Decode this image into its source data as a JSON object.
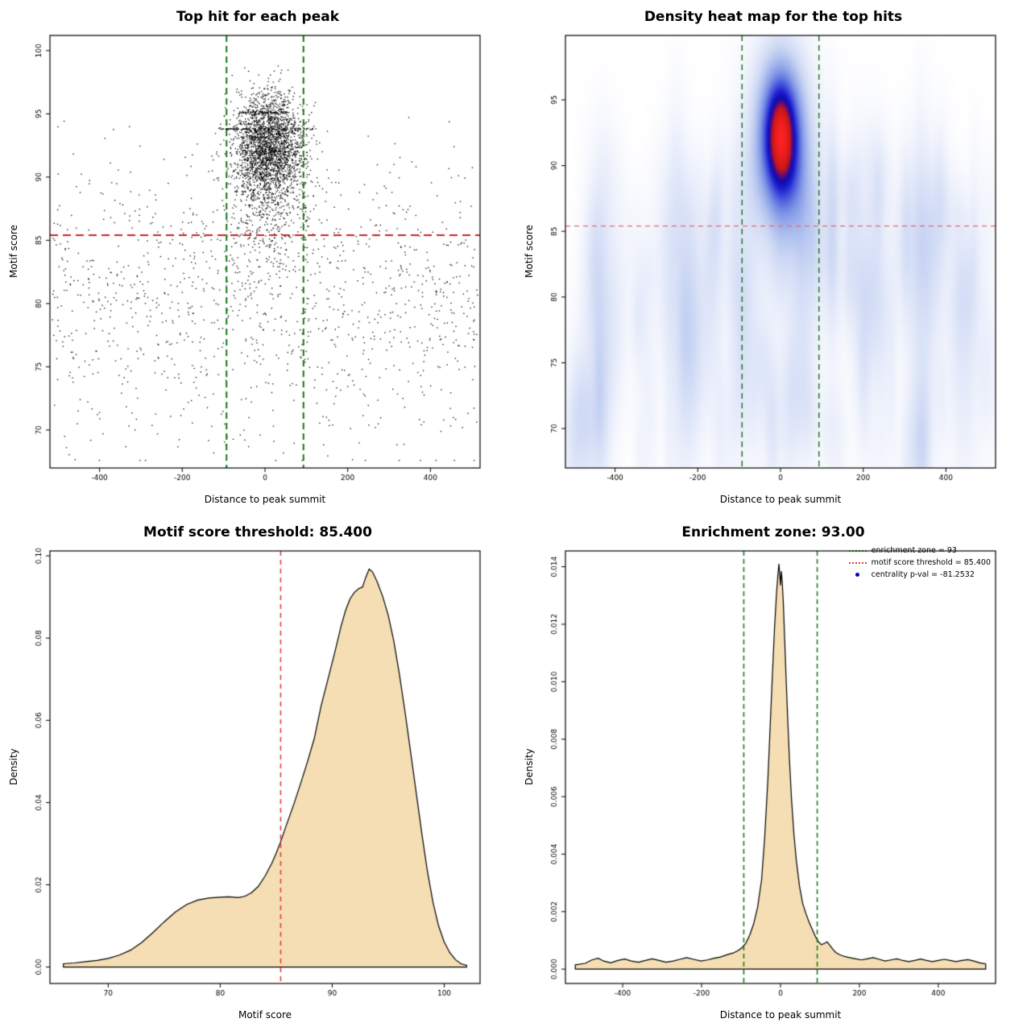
{
  "figure": {
    "background": "#ffffff"
  },
  "chart_data": [
    {
      "type": "scatter",
      "title": "Top hit for each peak",
      "xlabel": "Distance to peak summit",
      "ylabel": "Motif score",
      "xlim": [
        -520,
        520
      ],
      "ylim": [
        67,
        101.2
      ],
      "xticks": [
        -400,
        -200,
        0,
        200,
        400
      ],
      "xtick_labels": [
        "-400",
        "-200",
        "0",
        "200",
        "400"
      ],
      "yticks": [
        70,
        75,
        80,
        85,
        90,
        95,
        100
      ],
      "ytick_labels": [
        "70",
        "75",
        "80",
        "85",
        "90",
        "95",
        "100"
      ],
      "point_color": "#000000",
      "seed": 42,
      "clusters": [
        {
          "kind": "normal",
          "n": 2400,
          "x_mean": 8,
          "x_sd": 42,
          "y_mean": 92.4,
          "y_sd": 2.1,
          "x_clip": [
            -300,
            330
          ],
          "y_clip": [
            85.8,
            100.3
          ]
        },
        {
          "kind": "normal",
          "n": 420,
          "x_mean": 10,
          "x_sd": 60,
          "y_mean": 87.5,
          "y_sd": 2.6,
          "x_clip": [
            -330,
            360
          ],
          "y_clip": [
            80,
            92
          ]
        },
        {
          "kind": "background",
          "n": 1150,
          "x_range": [
            -515,
            515
          ],
          "y_mean": 80.3,
          "y_sd": 5.3,
          "y_clip": [
            67.6,
            96.5
          ]
        },
        {
          "kind": "streak",
          "n": 80,
          "y": 95.1,
          "x_range": [
            -62,
            58
          ],
          "y_jitter": 0.05
        },
        {
          "kind": "streak",
          "n": 110,
          "y": 93.8,
          "x_range": [
            -112,
            128
          ],
          "y_jitter": 0.05
        },
        {
          "kind": "normal",
          "n": 18,
          "x_mean": -200,
          "x_sd": 150,
          "y_mean": 69.5,
          "y_sd": 1.2,
          "x_clip": [
            -480,
            480
          ],
          "y_clip": [
            67.6,
            72
          ]
        }
      ],
      "vlines": [
        {
          "x": -93,
          "color": "#117711",
          "dash": [
            8,
            5
          ],
          "width": 2
        },
        {
          "x": 93,
          "color": "#117711",
          "dash": [
            8,
            5
          ],
          "width": 2
        }
      ],
      "hlines": [
        {
          "y": 85.4,
          "color": "#cc2222",
          "dash": [
            10,
            6
          ],
          "width": 2
        }
      ],
      "enrichment_zone": 93,
      "motif_score_threshold": 85.4
    },
    {
      "type": "heatmap2d",
      "title": "Density heat map for the top hits",
      "xlabel": "Distance to peak summit",
      "ylabel": "Motif score",
      "xlim": [
        -520,
        520
      ],
      "ylim": [
        67,
        99.9
      ],
      "xticks": [
        -400,
        -200,
        0,
        200,
        400
      ],
      "xtick_labels": [
        "-400",
        "-200",
        "0",
        "200",
        "400"
      ],
      "yticks": [
        70,
        75,
        80,
        85,
        90,
        95
      ],
      "ytick_labels": [
        "70",
        "75",
        "80",
        "85",
        "90",
        "95"
      ],
      "components": [
        {
          "amp": 1.0,
          "x0": 0,
          "y0": 92.0,
          "sx": 55,
          "sy": 5.0
        },
        {
          "amp": 2.2,
          "x0": 1,
          "y0": 92.4,
          "sx": 30,
          "sy": 3.2
        }
      ],
      "noise": {
        "seed": 7,
        "count": 140,
        "amp": [
          0.08,
          0.18
        ],
        "x_range": [
          -515,
          515
        ],
        "y_range": [
          68,
          90
        ],
        "sx": [
          8,
          28
        ],
        "sy": [
          2,
          6
        ]
      },
      "colormap": [
        [
          0.0,
          "#ffffff"
        ],
        [
          0.04,
          "#f5f7fd"
        ],
        [
          0.1,
          "#e4eafa"
        ],
        [
          0.18,
          "#cdd8f4"
        ],
        [
          0.28,
          "#a9bbee"
        ],
        [
          0.4,
          "#7e93e6"
        ],
        [
          0.52,
          "#4a5ade"
        ],
        [
          0.62,
          "#2020cf"
        ],
        [
          0.7,
          "#0c0cae"
        ],
        [
          0.76,
          "#600a7e"
        ],
        [
          0.82,
          "#c81616"
        ],
        [
          1.0,
          "#ff2222"
        ]
      ],
      "vlines": [
        {
          "x": -93,
          "color": "#2e7d32",
          "dash": [
            7,
            5
          ],
          "width": 1.6
        },
        {
          "x": 93,
          "color": "#2e7d32",
          "dash": [
            7,
            5
          ],
          "width": 1.6
        }
      ],
      "hlines": [
        {
          "y": 85.4,
          "color": "#ee6666",
          "dash": [
            6,
            5
          ],
          "width": 1.4
        }
      ],
      "enrichment_zone": 93,
      "motif_score_threshold": 85.4
    },
    {
      "type": "density",
      "title": "Motif score threshold: 85.400",
      "xlabel": "Motif score",
      "ylabel": "Density",
      "xlim": [
        64.8,
        103.2
      ],
      "ylim": [
        -0.004,
        0.1012
      ],
      "xticks": [
        70,
        80,
        90,
        100
      ],
      "xtick_labels": [
        "70",
        "80",
        "90",
        "100"
      ],
      "yticks": [
        0,
        0.02,
        0.04,
        0.06,
        0.08,
        0.1
      ],
      "ytick_labels": [
        "0.00",
        "0.02",
        "0.04",
        "0.06",
        "0.08",
        "0.10"
      ],
      "fill": "#f5deb3",
      "stroke": "#000000",
      "vlines": [
        {
          "x": 85.4,
          "color": "#e04040",
          "dash": [
            6,
            5
          ],
          "width": 1.6
        }
      ],
      "points": [
        [
          66,
          0.0008
        ],
        [
          67,
          0.001
        ],
        [
          68,
          0.0013
        ],
        [
          69,
          0.0016
        ],
        [
          70,
          0.0021
        ],
        [
          71,
          0.0029
        ],
        [
          72,
          0.0041
        ],
        [
          73,
          0.006
        ],
        [
          74,
          0.0084
        ],
        [
          75,
          0.011
        ],
        [
          76,
          0.0134
        ],
        [
          77,
          0.0152
        ],
        [
          78,
          0.0163
        ],
        [
          79,
          0.0168
        ],
        [
          80,
          0.017
        ],
        [
          80.8,
          0.0171
        ],
        [
          81.6,
          0.0169
        ],
        [
          82.2,
          0.0172
        ],
        [
          82.8,
          0.0181
        ],
        [
          83.4,
          0.0196
        ],
        [
          84,
          0.0221
        ],
        [
          84.6,
          0.0252
        ],
        [
          85,
          0.0277
        ],
        [
          85.4,
          0.0305
        ],
        [
          86,
          0.0352
        ],
        [
          86.6,
          0.0398
        ],
        [
          87.2,
          0.0448
        ],
        [
          87.8,
          0.05
        ],
        [
          88.4,
          0.0556
        ],
        [
          89,
          0.0634
        ],
        [
          89.6,
          0.0698
        ],
        [
          90.2,
          0.0762
        ],
        [
          90.8,
          0.083
        ],
        [
          91.2,
          0.0868
        ],
        [
          91.6,
          0.0896
        ],
        [
          92,
          0.0912
        ],
        [
          92.4,
          0.0921
        ],
        [
          92.7,
          0.0924
        ],
        [
          93,
          0.0948
        ],
        [
          93.3,
          0.0968
        ],
        [
          93.6,
          0.0961
        ],
        [
          94,
          0.0938
        ],
        [
          94.5,
          0.0902
        ],
        [
          95,
          0.0856
        ],
        [
          95.5,
          0.0793
        ],
        [
          96,
          0.0712
        ],
        [
          96.5,
          0.0621
        ],
        [
          97,
          0.0523
        ],
        [
          97.5,
          0.0424
        ],
        [
          98,
          0.0325
        ],
        [
          98.5,
          0.0233
        ],
        [
          99,
          0.0157
        ],
        [
          99.5,
          0.01
        ],
        [
          100,
          0.0061
        ],
        [
          100.5,
          0.0035
        ],
        [
          101,
          0.0018
        ],
        [
          101.5,
          0.0008
        ],
        [
          102,
          0.0004
        ]
      ],
      "motif_score_threshold": 85.4
    },
    {
      "type": "density",
      "title": "Enrichment zone: 93.00",
      "xlabel": "Distance to peak summit",
      "ylabel": "Density",
      "xlim": [
        -545,
        545
      ],
      "ylim": [
        -0.0005,
        0.01455
      ],
      "xticks": [
        -400,
        -200,
        0,
        200,
        400
      ],
      "xtick_labels": [
        "-400",
        "-200",
        "0",
        "200",
        "400"
      ],
      "yticks": [
        0,
        0.002,
        0.004,
        0.006,
        0.008,
        0.01,
        0.012,
        0.014
      ],
      "ytick_labels": [
        "0.000",
        "0.002",
        "0.004",
        "0.006",
        "0.008",
        "0.010",
        "0.012",
        "0.014"
      ],
      "fill": "#f5deb3",
      "stroke": "#000000",
      "vlines": [
        {
          "x": -93,
          "color": "#117711",
          "dash": [
            6,
            4
          ],
          "width": 1.5
        },
        {
          "x": 93,
          "color": "#117711",
          "dash": [
            6,
            4
          ],
          "width": 1.5
        }
      ],
      "points": [
        [
          -520,
          0.00015
        ],
        [
          -495,
          0.0002
        ],
        [
          -478,
          0.00032
        ],
        [
          -462,
          0.00038
        ],
        [
          -448,
          0.00028
        ],
        [
          -430,
          0.00022
        ],
        [
          -412,
          0.0003
        ],
        [
          -395,
          0.00035
        ],
        [
          -378,
          0.00028
        ],
        [
          -360,
          0.00024
        ],
        [
          -342,
          0.0003
        ],
        [
          -325,
          0.00036
        ],
        [
          -308,
          0.0003
        ],
        [
          -290,
          0.00024
        ],
        [
          -272,
          0.00028
        ],
        [
          -255,
          0.00034
        ],
        [
          -238,
          0.0004
        ],
        [
          -220,
          0.00034
        ],
        [
          -202,
          0.00028
        ],
        [
          -185,
          0.00032
        ],
        [
          -168,
          0.00038
        ],
        [
          -152,
          0.00042
        ],
        [
          -136,
          0.0005
        ],
        [
          -120,
          0.00056
        ],
        [
          -108,
          0.00064
        ],
        [
          -98,
          0.00074
        ],
        [
          -88,
          0.0009
        ],
        [
          -78,
          0.00118
        ],
        [
          -68,
          0.00158
        ],
        [
          -58,
          0.00215
        ],
        [
          -48,
          0.0031
        ],
        [
          -40,
          0.0046
        ],
        [
          -32,
          0.0066
        ],
        [
          -26,
          0.0085
        ],
        [
          -20,
          0.0104
        ],
        [
          -15,
          0.0119
        ],
        [
          -10,
          0.0131
        ],
        [
          -7,
          0.01365
        ],
        [
          -4,
          0.0141
        ],
        [
          -2,
          0.01375
        ],
        [
          0,
          0.01335
        ],
        [
          2,
          0.01385
        ],
        [
          4,
          0.01355
        ],
        [
          7,
          0.0128
        ],
        [
          10,
          0.0117
        ],
        [
          14,
          0.0102
        ],
        [
          18,
          0.0088
        ],
        [
          23,
          0.0072
        ],
        [
          28,
          0.0059
        ],
        [
          34,
          0.0047
        ],
        [
          40,
          0.0038
        ],
        [
          48,
          0.0029
        ],
        [
          56,
          0.0023
        ],
        [
          64,
          0.00195
        ],
        [
          72,
          0.00165
        ],
        [
          80,
          0.0014
        ],
        [
          88,
          0.00115
        ],
        [
          96,
          0.00095
        ],
        [
          104,
          0.00085
        ],
        [
          112,
          0.0009
        ],
        [
          118,
          0.00095
        ],
        [
          124,
          0.00085
        ],
        [
          132,
          0.0007
        ],
        [
          140,
          0.00058
        ],
        [
          150,
          0.0005
        ],
        [
          162,
          0.00044
        ],
        [
          175,
          0.0004
        ],
        [
          190,
          0.00036
        ],
        [
          205,
          0.00032
        ],
        [
          220,
          0.00036
        ],
        [
          235,
          0.0004
        ],
        [
          250,
          0.00034
        ],
        [
          265,
          0.00028
        ],
        [
          280,
          0.00032
        ],
        [
          295,
          0.00036
        ],
        [
          310,
          0.0003
        ],
        [
          325,
          0.00026
        ],
        [
          340,
          0.0003
        ],
        [
          355,
          0.00035
        ],
        [
          370,
          0.0003
        ],
        [
          385,
          0.00026
        ],
        [
          400,
          0.0003
        ],
        [
          415,
          0.00034
        ],
        [
          430,
          0.0003
        ],
        [
          445,
          0.00026
        ],
        [
          460,
          0.0003
        ],
        [
          475,
          0.00033
        ],
        [
          490,
          0.00028
        ],
        [
          505,
          0.00022
        ],
        [
          520,
          0.00018
        ]
      ],
      "legend": {
        "items": [
          {
            "label": "enrichment zone = 93",
            "type": "line",
            "color": "#117711"
          },
          {
            "label": "motif score threshold = 85.400",
            "type": "line",
            "color": "#e04040"
          },
          {
            "label": "centrality p-val = -81.2532",
            "type": "point",
            "color": "#0000bb"
          }
        ]
      },
      "enrichment_zone": 93,
      "motif_score_threshold": 85.4,
      "centrality_pval": -81.2532
    }
  ]
}
